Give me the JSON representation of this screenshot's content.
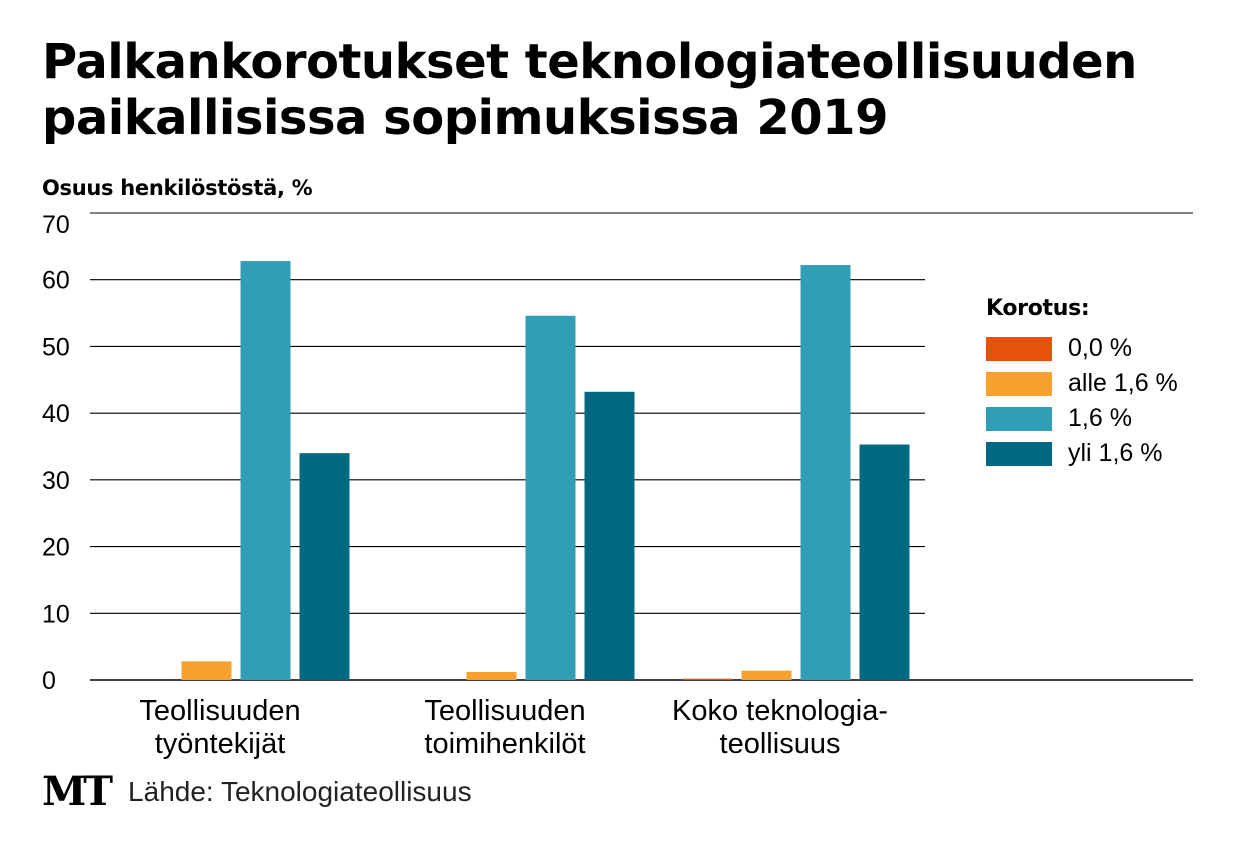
{
  "title_line1": "Palkankorotukset teknologiateollisuuden",
  "title_line2": "paikallisissa sopimuksissa 2019",
  "footer": {
    "logo": "MT",
    "source": "Lähde: Teknologiateollisuus"
  },
  "chart_data": {
    "type": "bar",
    "ylabel": "Osuus henkilöstöstä, %",
    "ylim": [
      0,
      70
    ],
    "yticks": [
      0,
      10,
      20,
      30,
      40,
      50,
      60,
      70
    ],
    "grid": true,
    "legend_title": "Korotus:",
    "legend_position": "right",
    "categories": [
      [
        "Teollisuuden",
        "työntekijät"
      ],
      [
        "Teollisuuden",
        "toimihenkilöt"
      ],
      [
        "Koko teknologia-",
        "teollisuus"
      ]
    ],
    "series": [
      {
        "name": "0,0 %",
        "color": "#e8510a",
        "values": [
          0,
          0,
          0.2
        ]
      },
      {
        "name": "alle 1,6 %",
        "color": "#f7a12f",
        "values": [
          2.8,
          1.2,
          1.4
        ]
      },
      {
        "name": "1,6 %",
        "color": "#309fb5",
        "values": [
          62.8,
          54.6,
          62.2
        ]
      },
      {
        "name": "yli 1,6 %",
        "color": "#006981",
        "values": [
          34,
          43.2,
          35.3
        ]
      }
    ]
  }
}
